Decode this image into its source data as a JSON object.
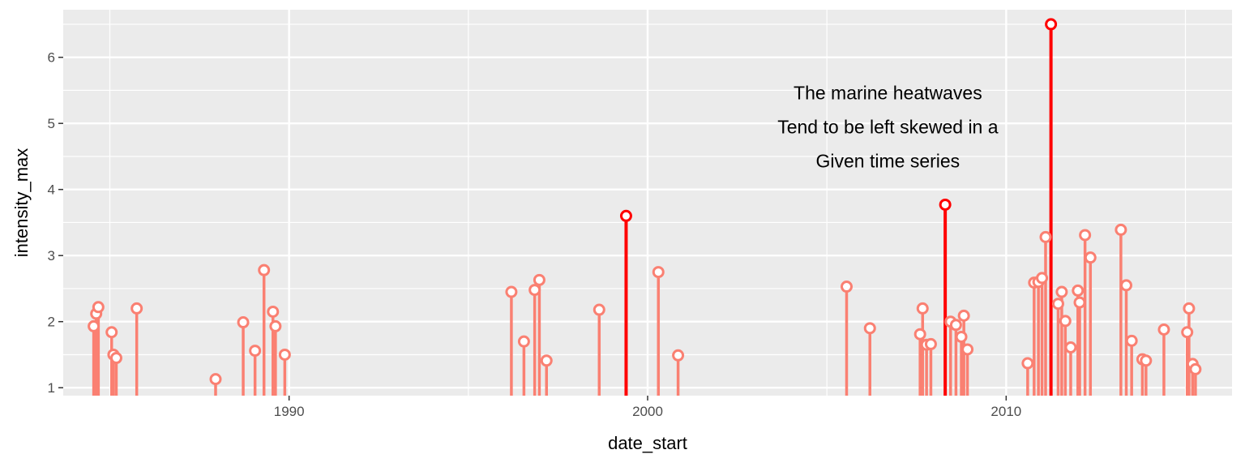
{
  "chart_data": {
    "type": "lollipop",
    "title": "",
    "xlabel": "date_start",
    "ylabel": "intensity_max",
    "x_unit": "year",
    "xlim": [
      1983.7,
      2016.3
    ],
    "ylim": [
      0.88,
      6.72
    ],
    "x_ticks": [
      1990,
      2000,
      2010
    ],
    "x_tick_labels": [
      "1990",
      "2000",
      "2010"
    ],
    "y_ticks": [
      1,
      2,
      3,
      4,
      5,
      6
    ],
    "y_tick_labels": [
      "1",
      "2",
      "3",
      "4",
      "5",
      "6"
    ],
    "grid": true,
    "legend": "none",
    "colors": {
      "panel": "#ebebeb",
      "grid": "#ffffff",
      "normal": "#fa8072",
      "highlight": "#ff0000"
    },
    "annotation": {
      "lines": [
        "The marine heatwaves",
        "Tend to be left skewed in a",
        "Given time series"
      ],
      "x": 2006.7,
      "y": 4.95
    },
    "points": [
      {
        "x": 1984.55,
        "y": 1.93,
        "highlight": false
      },
      {
        "x": 1984.62,
        "y": 2.12,
        "highlight": false
      },
      {
        "x": 1984.68,
        "y": 2.22,
        "highlight": false
      },
      {
        "x": 1985.05,
        "y": 1.84,
        "highlight": false
      },
      {
        "x": 1985.1,
        "y": 1.5,
        "highlight": false
      },
      {
        "x": 1985.18,
        "y": 1.45,
        "highlight": false
      },
      {
        "x": 1985.75,
        "y": 2.2,
        "highlight": false
      },
      {
        "x": 1987.95,
        "y": 1.13,
        "highlight": false
      },
      {
        "x": 1988.72,
        "y": 1.99,
        "highlight": false
      },
      {
        "x": 1989.05,
        "y": 1.56,
        "highlight": false
      },
      {
        "x": 1989.3,
        "y": 2.78,
        "highlight": false
      },
      {
        "x": 1989.55,
        "y": 2.15,
        "highlight": false
      },
      {
        "x": 1989.62,
        "y": 1.93,
        "highlight": false
      },
      {
        "x": 1989.88,
        "y": 1.5,
        "highlight": false
      },
      {
        "x": 1996.2,
        "y": 2.45,
        "highlight": false
      },
      {
        "x": 1996.55,
        "y": 1.7,
        "highlight": false
      },
      {
        "x": 1996.85,
        "y": 2.48,
        "highlight": false
      },
      {
        "x": 1996.98,
        "y": 2.63,
        "highlight": false
      },
      {
        "x": 1997.18,
        "y": 1.41,
        "highlight": false
      },
      {
        "x": 1998.65,
        "y": 2.18,
        "highlight": false
      },
      {
        "x": 1999.4,
        "y": 3.6,
        "highlight": true
      },
      {
        "x": 2000.3,
        "y": 2.75,
        "highlight": false
      },
      {
        "x": 2000.85,
        "y": 1.49,
        "highlight": false
      },
      {
        "x": 2005.55,
        "y": 2.53,
        "highlight": false
      },
      {
        "x": 2006.2,
        "y": 1.9,
        "highlight": false
      },
      {
        "x": 2007.6,
        "y": 1.81,
        "highlight": false
      },
      {
        "x": 2007.67,
        "y": 2.2,
        "highlight": false
      },
      {
        "x": 2007.78,
        "y": 1.65,
        "highlight": false
      },
      {
        "x": 2007.9,
        "y": 1.66,
        "highlight": false
      },
      {
        "x": 2008.3,
        "y": 3.77,
        "highlight": true
      },
      {
        "x": 2008.45,
        "y": 2.0,
        "highlight": false
      },
      {
        "x": 2008.6,
        "y": 1.95,
        "highlight": false
      },
      {
        "x": 2008.75,
        "y": 1.77,
        "highlight": false
      },
      {
        "x": 2008.82,
        "y": 2.09,
        "highlight": false
      },
      {
        "x": 2008.92,
        "y": 1.58,
        "highlight": false
      },
      {
        "x": 2010.6,
        "y": 1.37,
        "highlight": false
      },
      {
        "x": 2010.78,
        "y": 2.59,
        "highlight": false
      },
      {
        "x": 2010.9,
        "y": 2.6,
        "highlight": false
      },
      {
        "x": 2011.0,
        "y": 2.66,
        "highlight": false
      },
      {
        "x": 2011.1,
        "y": 3.28,
        "highlight": false
      },
      {
        "x": 2011.25,
        "y": 6.5,
        "highlight": true
      },
      {
        "x": 2011.45,
        "y": 2.27,
        "highlight": false
      },
      {
        "x": 2011.55,
        "y": 2.45,
        "highlight": false
      },
      {
        "x": 2011.65,
        "y": 2.01,
        "highlight": false
      },
      {
        "x": 2011.8,
        "y": 1.61,
        "highlight": false
      },
      {
        "x": 2012.0,
        "y": 2.47,
        "highlight": false
      },
      {
        "x": 2012.05,
        "y": 2.29,
        "highlight": false
      },
      {
        "x": 2012.2,
        "y": 3.31,
        "highlight": false
      },
      {
        "x": 2012.35,
        "y": 2.97,
        "highlight": false
      },
      {
        "x": 2013.2,
        "y": 3.39,
        "highlight": false
      },
      {
        "x": 2013.35,
        "y": 2.55,
        "highlight": false
      },
      {
        "x": 2013.5,
        "y": 1.71,
        "highlight": false
      },
      {
        "x": 2013.8,
        "y": 1.43,
        "highlight": false
      },
      {
        "x": 2013.9,
        "y": 1.41,
        "highlight": false
      },
      {
        "x": 2014.4,
        "y": 1.88,
        "highlight": false
      },
      {
        "x": 2015.05,
        "y": 1.84,
        "highlight": false
      },
      {
        "x": 2015.1,
        "y": 2.2,
        "highlight": false
      },
      {
        "x": 2015.2,
        "y": 1.36,
        "highlight": false
      },
      {
        "x": 2015.28,
        "y": 1.28,
        "highlight": false
      }
    ]
  }
}
